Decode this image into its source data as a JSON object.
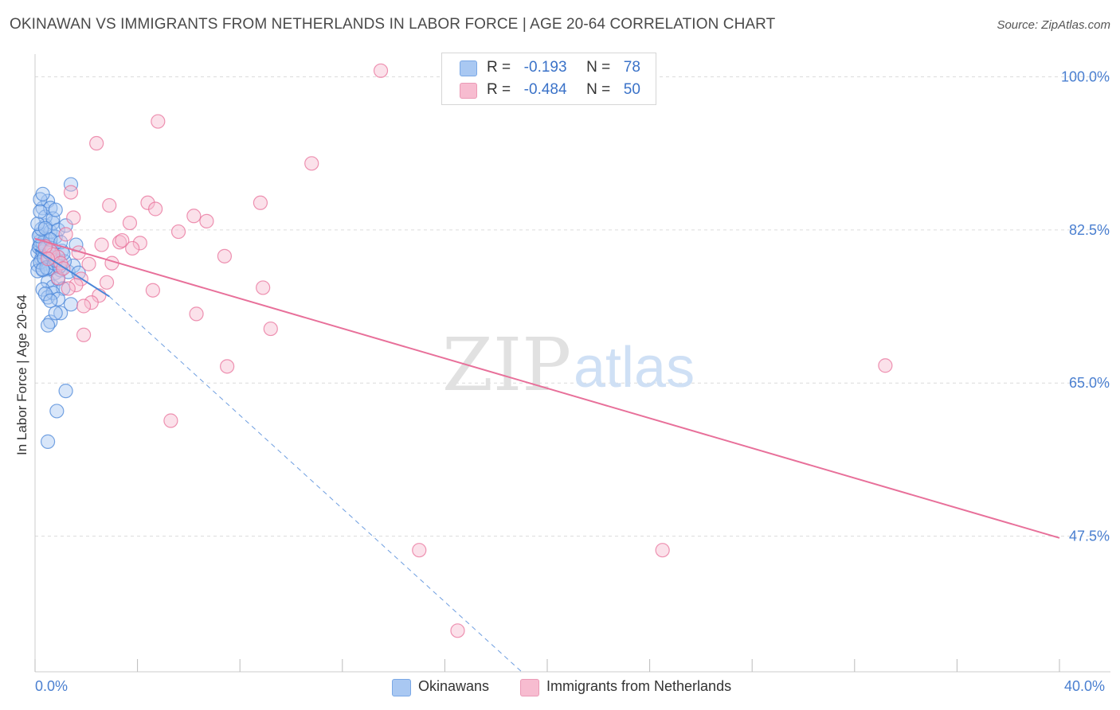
{
  "title": "OKINAWAN VS IMMIGRANTS FROM NETHERLANDS IN LABOR FORCE | AGE 20-64 CORRELATION CHART",
  "source": "Source: ZipAtlas.com",
  "watermark": {
    "zip": "ZIP",
    "atlas": "atlas"
  },
  "legend": {
    "rows": [
      {
        "r_label": "R =",
        "r_value": "-0.193",
        "n_label": "N =",
        "n_value": "78",
        "color": "#a9c8f2"
      },
      {
        "r_label": "R =",
        "r_value": "-0.484",
        "n_label": "N =",
        "n_value": "50",
        "color": "#f7bcd0"
      }
    ]
  },
  "bottom_legend": [
    {
      "label": "Okinawans",
      "color": "#a9c8f2"
    },
    {
      "label": "Immigrants from Netherlands",
      "color": "#f7bcd0"
    }
  ],
  "chart_data": {
    "type": "scatter",
    "title": "OKINAWAN VS IMMIGRANTS FROM NETHERLANDS IN LABOR FORCE | AGE 20-64 CORRELATION CHART",
    "xlabel": "",
    "ylabel": "In Labor Force | Age 20-64",
    "xlim": [
      0,
      42
    ],
    "ylim": [
      32,
      101.5
    ],
    "x_tick_labels": [
      "0.0%",
      "40.0%"
    ],
    "y_ticks": [
      47.5,
      65.0,
      82.5,
      100.0
    ],
    "y_tick_labels": [
      "47.5%",
      "65.0%",
      "82.5%",
      "100.0%"
    ],
    "grid": true,
    "series": [
      {
        "name": "Okinawans",
        "color": "#4a86d8",
        "fill": "#a9c8f2",
        "r": -0.193,
        "n": 78,
        "points": [
          [
            0.1,
            79.9
          ],
          [
            0.15,
            80.5
          ],
          [
            0.2,
            81.2
          ],
          [
            0.25,
            79.2
          ],
          [
            0.3,
            80.0
          ],
          [
            0.35,
            78.6
          ],
          [
            0.4,
            81.5
          ],
          [
            0.1,
            78.5
          ],
          [
            0.2,
            82.0
          ],
          [
            0.3,
            77.9
          ],
          [
            0.4,
            83.0
          ],
          [
            0.5,
            79.6
          ],
          [
            0.6,
            80.8
          ],
          [
            0.7,
            78.2
          ],
          [
            0.8,
            77.6
          ],
          [
            0.9,
            79.4
          ],
          [
            0.1,
            77.8
          ],
          [
            0.2,
            78.8
          ],
          [
            0.3,
            81.0
          ],
          [
            0.4,
            80.3
          ],
          [
            0.5,
            78.0
          ],
          [
            0.6,
            82.3
          ],
          [
            0.7,
            83.3
          ],
          [
            0.8,
            81.7
          ],
          [
            0.3,
            85.0
          ],
          [
            0.4,
            84.0
          ],
          [
            0.5,
            85.8
          ],
          [
            0.6,
            85.0
          ],
          [
            0.7,
            83.8
          ],
          [
            0.8,
            84.8
          ],
          [
            0.9,
            82.5
          ],
          [
            0.2,
            86.0
          ],
          [
            0.3,
            86.6
          ],
          [
            1.4,
            87.7
          ],
          [
            1.2,
            83.0
          ],
          [
            1.6,
            80.8
          ],
          [
            1.0,
            77.9
          ],
          [
            1.3,
            77.7
          ],
          [
            1.5,
            78.4
          ],
          [
            1.7,
            77.6
          ],
          [
            0.5,
            76.6
          ],
          [
            0.7,
            76.0
          ],
          [
            0.9,
            76.9
          ],
          [
            1.1,
            75.8
          ],
          [
            0.3,
            75.7
          ],
          [
            0.5,
            74.8
          ],
          [
            0.7,
            75.3
          ],
          [
            0.9,
            74.6
          ],
          [
            0.4,
            75.2
          ],
          [
            0.6,
            74.4
          ],
          [
            1.0,
            73.0
          ],
          [
            1.4,
            74.0
          ],
          [
            0.6,
            72.0
          ],
          [
            0.5,
            71.6
          ],
          [
            0.8,
            73.0
          ],
          [
            1.2,
            64.1
          ],
          [
            0.85,
            61.8
          ],
          [
            0.5,
            58.3
          ],
          [
            0.2,
            80.7
          ],
          [
            0.35,
            79.3
          ],
          [
            0.45,
            78.2
          ],
          [
            0.55,
            79.9
          ],
          [
            0.65,
            80.4
          ],
          [
            0.75,
            78.7
          ],
          [
            0.15,
            81.8
          ],
          [
            0.25,
            82.6
          ],
          [
            0.85,
            79.1
          ],
          [
            0.95,
            78.3
          ],
          [
            1.05,
            80.1
          ],
          [
            1.15,
            78.9
          ],
          [
            0.1,
            83.2
          ],
          [
            0.2,
            84.6
          ],
          [
            0.4,
            82.7
          ],
          [
            0.6,
            81.4
          ],
          [
            0.8,
            79.0
          ],
          [
            1.0,
            81.1
          ],
          [
            1.1,
            79.8
          ],
          [
            0.3,
            78.0
          ]
        ]
      },
      {
        "name": "Immigrants from Netherlands",
        "color": "#e8709a",
        "fill": "#f7bcd0",
        "r": -0.484,
        "n": 50,
        "points": [
          [
            13.5,
            100.7
          ],
          [
            4.8,
            94.9
          ],
          [
            2.4,
            92.4
          ],
          [
            10.8,
            90.1
          ],
          [
            1.4,
            86.8
          ],
          [
            2.9,
            85.3
          ],
          [
            4.4,
            85.6
          ],
          [
            8.8,
            85.6
          ],
          [
            4.7,
            84.9
          ],
          [
            6.2,
            84.1
          ],
          [
            6.7,
            83.5
          ],
          [
            3.7,
            83.3
          ],
          [
            1.5,
            83.9
          ],
          [
            5.6,
            82.3
          ],
          [
            1.2,
            82.0
          ],
          [
            2.6,
            80.8
          ],
          [
            3.3,
            81.1
          ],
          [
            3.4,
            81.3
          ],
          [
            4.1,
            81.0
          ],
          [
            0.6,
            80.1
          ],
          [
            0.9,
            79.4
          ],
          [
            1.7,
            79.9
          ],
          [
            3.8,
            80.4
          ],
          [
            0.7,
            79.7
          ],
          [
            7.4,
            79.5
          ],
          [
            1.0,
            78.7
          ],
          [
            3.0,
            78.7
          ],
          [
            2.1,
            78.6
          ],
          [
            1.8,
            76.9
          ],
          [
            2.8,
            76.5
          ],
          [
            0.9,
            77.0
          ],
          [
            1.6,
            76.2
          ],
          [
            1.3,
            75.8
          ],
          [
            4.6,
            75.6
          ],
          [
            8.9,
            75.9
          ],
          [
            2.5,
            75.0
          ],
          [
            2.2,
            74.2
          ],
          [
            1.9,
            73.8
          ],
          [
            6.3,
            72.9
          ],
          [
            9.2,
            71.2
          ],
          [
            1.9,
            70.5
          ],
          [
            7.5,
            66.9
          ],
          [
            5.3,
            60.7
          ],
          [
            33.2,
            67.0
          ],
          [
            15.0,
            45.9
          ],
          [
            24.5,
            45.9
          ],
          [
            16.5,
            36.7
          ],
          [
            0.4,
            80.6
          ],
          [
            0.5,
            79.2
          ],
          [
            1.1,
            78.1
          ]
        ]
      }
    ],
    "trend_lines": [
      {
        "series": "Okinawans",
        "style": "solid",
        "x": [
          0,
          2.9
        ],
        "y": [
          80.3,
          74.9
        ]
      },
      {
        "series": "Okinawans",
        "style": "dashed",
        "x": [
          2.9,
          19.0
        ],
        "y": [
          74.9,
          32.0
        ]
      },
      {
        "series": "Immigrants from Netherlands",
        "style": "solid",
        "x": [
          0,
          40.0
        ],
        "y": [
          81.5,
          47.3
        ]
      }
    ]
  }
}
